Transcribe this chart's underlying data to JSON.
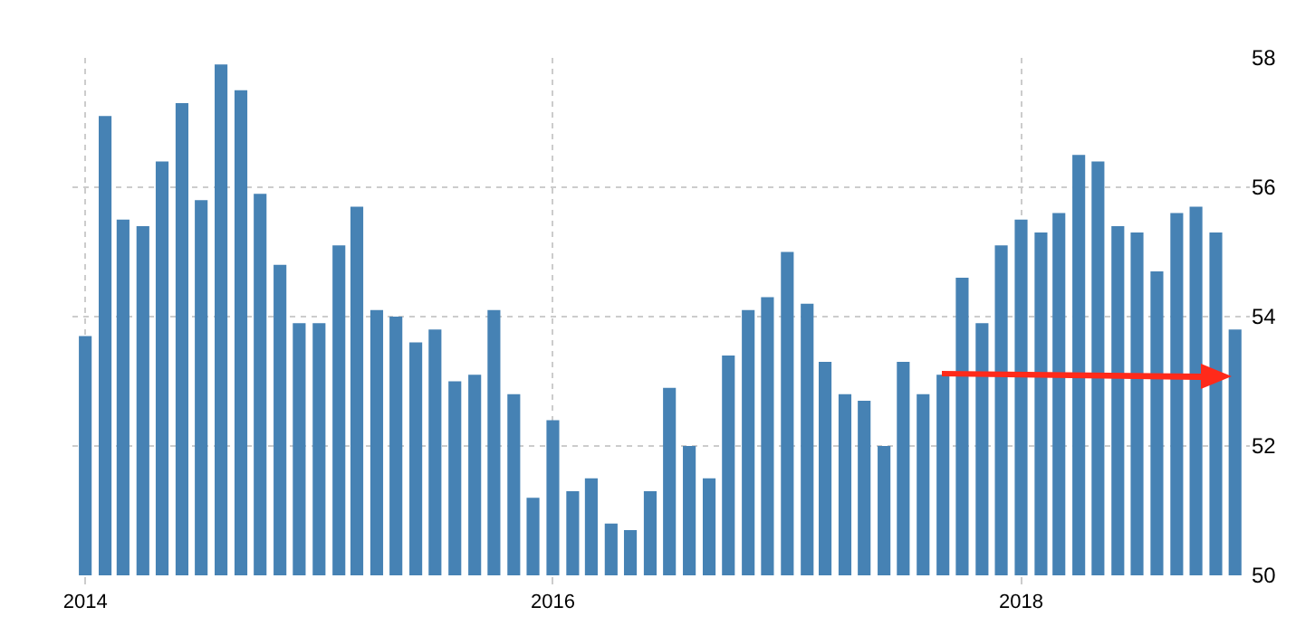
{
  "chart_data": {
    "type": "bar",
    "color": "#4682b4",
    "x": [
      "2014-01",
      "2014-02",
      "2014-03",
      "2014-04",
      "2014-05",
      "2014-06",
      "2014-07",
      "2014-08",
      "2014-09",
      "2014-10",
      "2014-11",
      "2014-12",
      "2015-01",
      "2015-02",
      "2015-03",
      "2015-04",
      "2015-05",
      "2015-06",
      "2015-07",
      "2015-08",
      "2015-09",
      "2015-10",
      "2015-11",
      "2015-12",
      "2016-01",
      "2016-02",
      "2016-03",
      "2016-04",
      "2016-05",
      "2016-06",
      "2016-07",
      "2016-08",
      "2016-09",
      "2016-10",
      "2016-11",
      "2016-12",
      "2017-01",
      "2017-02",
      "2017-03",
      "2017-04",
      "2017-05",
      "2017-06",
      "2017-07",
      "2017-08",
      "2017-09",
      "2017-10",
      "2017-11",
      "2017-12",
      "2018-01",
      "2018-02",
      "2018-03",
      "2018-04",
      "2018-05",
      "2018-06",
      "2018-07",
      "2018-08",
      "2018-09",
      "2018-10",
      "2018-11",
      "2018-12"
    ],
    "values": [
      53.7,
      57.1,
      55.5,
      55.4,
      56.4,
      57.3,
      55.8,
      57.9,
      57.5,
      55.9,
      54.8,
      53.9,
      53.9,
      55.1,
      55.7,
      54.1,
      54.0,
      53.6,
      53.8,
      53.0,
      53.1,
      54.1,
      52.8,
      51.2,
      52.4,
      51.3,
      51.5,
      50.8,
      50.7,
      51.3,
      52.9,
      52.0,
      51.5,
      53.4,
      54.1,
      54.3,
      55.0,
      54.2,
      53.3,
      52.8,
      52.7,
      52.0,
      53.3,
      52.8,
      53.1,
      54.6,
      53.9,
      55.1,
      55.5,
      55.3,
      55.6,
      56.5,
      56.4,
      55.4,
      55.3,
      54.7,
      55.6,
      55.7,
      55.3,
      53.8
    ],
    "xlim": [
      "2013-12-12",
      "2018-12-24"
    ],
    "xticks": [
      {
        "value": "2014-01-01",
        "label": "2014"
      },
      {
        "value": "2016-01-01",
        "label": "2016"
      },
      {
        "value": "2018-01-01",
        "label": "2018"
      }
    ],
    "ylim": [
      50,
      58
    ],
    "yticks": [
      50,
      52,
      54,
      56,
      58
    ],
    "grid": true
  }
}
